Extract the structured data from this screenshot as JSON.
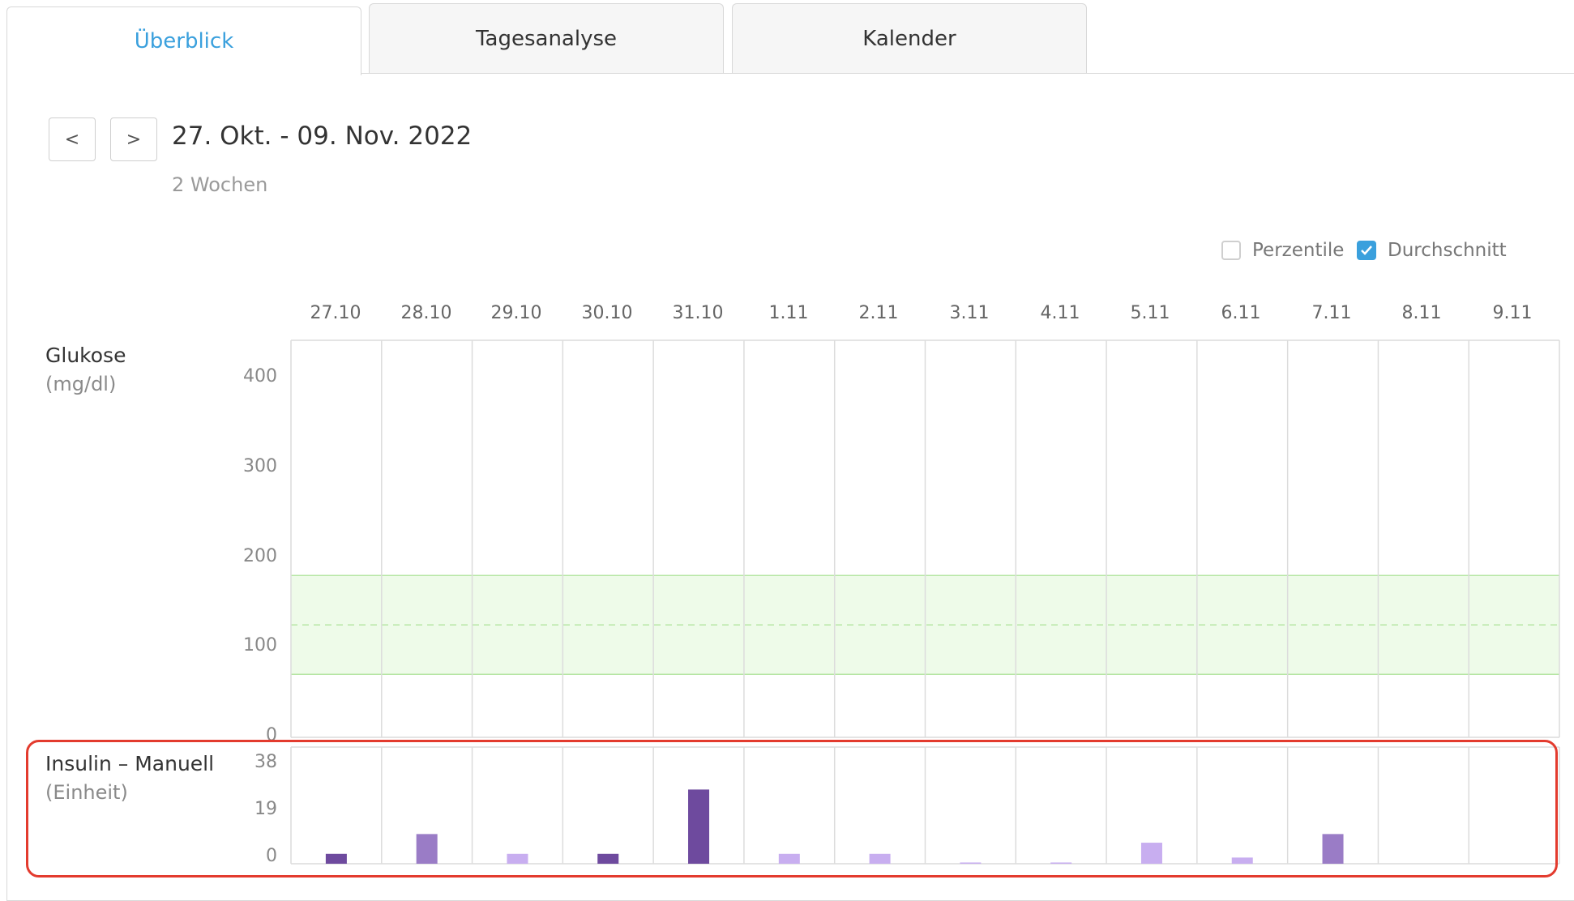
{
  "tabs": [
    {
      "label": "Überblick",
      "active": true
    },
    {
      "label": "Tagesanalyse",
      "active": false
    },
    {
      "label": "Kalender",
      "active": false
    }
  ],
  "nav": {
    "prev_label": "<",
    "next_label": ">"
  },
  "range": {
    "title": "27. Okt. - 09. Nov. 2022",
    "subtitle": "2 Wochen"
  },
  "toggles": {
    "percentile": {
      "label": "Perzentile",
      "checked": false
    },
    "average": {
      "label": "Durchschnitt",
      "checked": true
    }
  },
  "colors": {
    "accent": "#3aa0dd",
    "target_band": "#eefbe9",
    "target_line": "#b6e6a4",
    "grid": "#dcdcdc",
    "bar_dark": "#6e4a9e",
    "bar_mid": "#9a7cc6",
    "bar_light": "#c8aef0",
    "highlight": "#e33b2e"
  },
  "chart_data": [
    {
      "type": "line",
      "title": "Glukose",
      "ylabel": "(mg/dl)",
      "categories": [
        "27.10",
        "28.10",
        "29.10",
        "30.10",
        "31.10",
        "1.11",
        "2.11",
        "3.11",
        "4.11",
        "5.11",
        "6.11",
        "7.11",
        "8.11",
        "9.11"
      ],
      "yticks": [
        "400",
        "300",
        "200",
        "100",
        "0"
      ],
      "ylim": [
        0,
        450
      ],
      "target_range": [
        70,
        180
      ],
      "target_mid": 125,
      "series": []
    },
    {
      "type": "bar",
      "title": "Insulin – Manuell",
      "ylabel": "(Einheit)",
      "categories": [
        "27.10",
        "28.10",
        "29.10",
        "30.10",
        "31.10",
        "1.11",
        "2.11",
        "3.11",
        "4.11",
        "5.11",
        "6.11",
        "7.11",
        "8.11",
        "9.11"
      ],
      "yticks": [
        "38",
        "19",
        "0"
      ],
      "ylim": [
        0,
        38
      ],
      "values": [
        4,
        12,
        4,
        4,
        30,
        4,
        4,
        0.5,
        0.5,
        8.5,
        2.5,
        12,
        0,
        0
      ],
      "shades": [
        "dark",
        "mid",
        "light",
        "dark",
        "dark",
        "light",
        "light",
        "light",
        "light",
        "light",
        "light",
        "mid",
        "light",
        "light"
      ]
    }
  ]
}
